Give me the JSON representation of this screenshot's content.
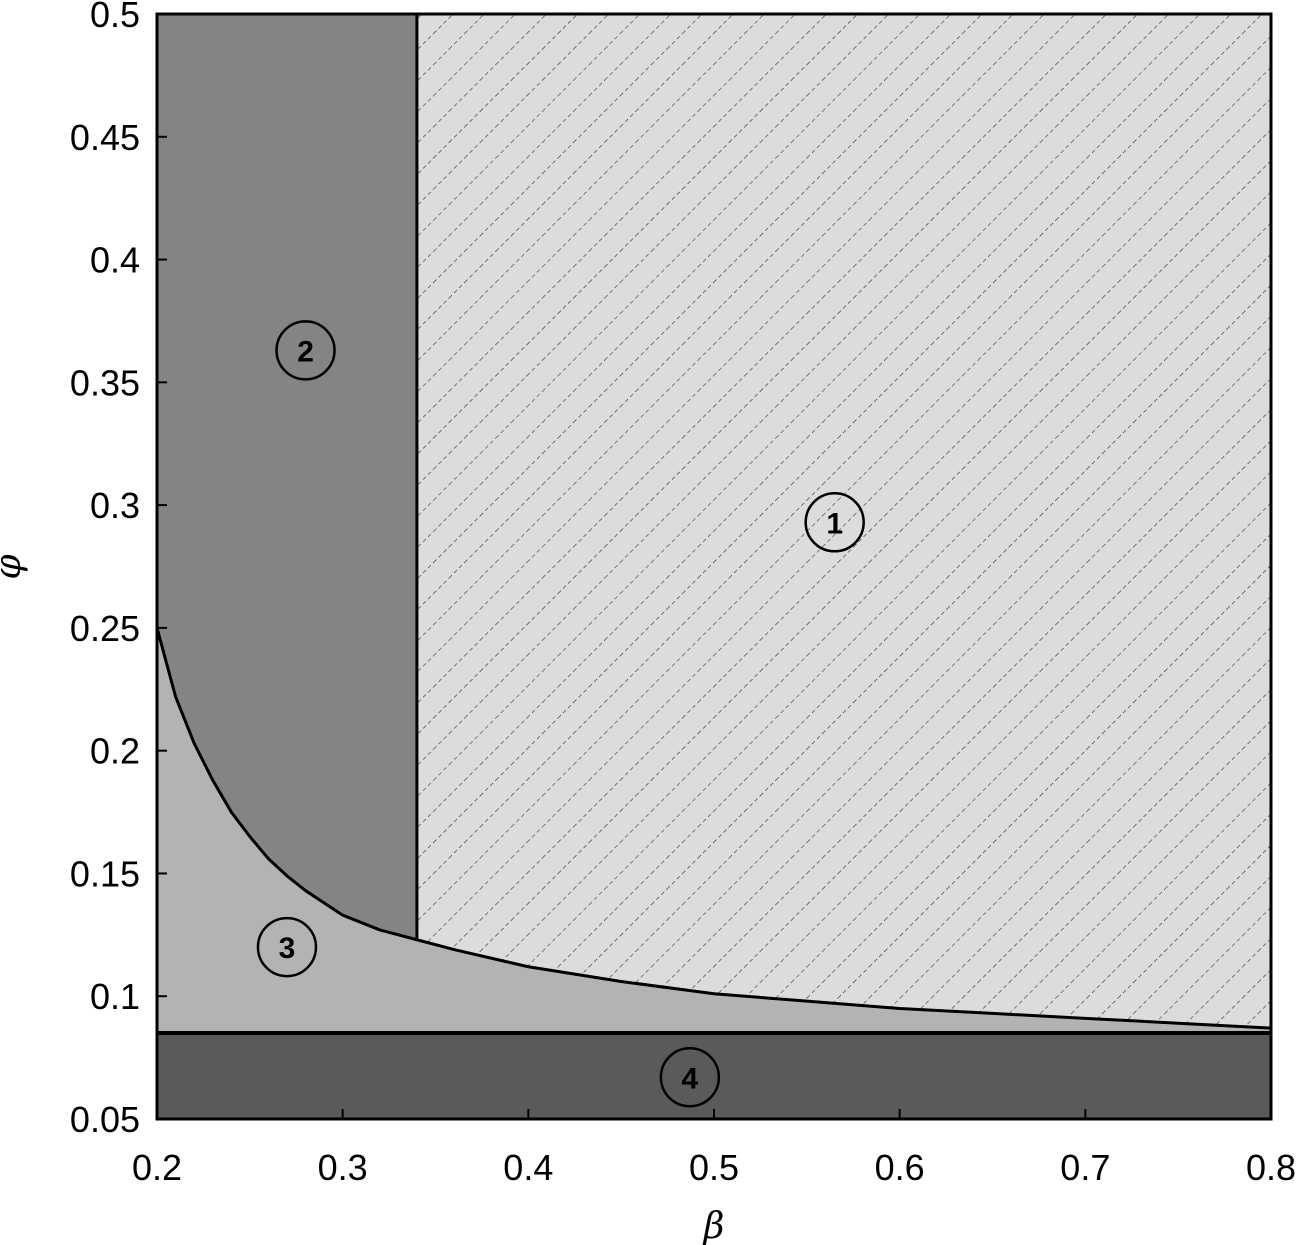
{
  "chart_data": {
    "type": "area",
    "title": "",
    "xlabel": "β",
    "ylabel": "φ",
    "xlim": [
      0.2,
      0.8
    ],
    "ylim": [
      0.05,
      0.5
    ],
    "xticks": [
      "0.2",
      "0.3",
      "0.4",
      "0.5",
      "0.6",
      "0.7",
      "0.8"
    ],
    "yticks": [
      "0.05",
      "0.1",
      "0.15",
      "0.2",
      "0.25",
      "0.3",
      "0.35",
      "0.4",
      "0.45",
      "0.5"
    ],
    "grid": false,
    "legend": "none",
    "boundaries": {
      "vertical_line_beta": 0.34,
      "horizontal_line_phi": 0.085,
      "curve": {
        "beta": [
          0.2,
          0.21,
          0.22,
          0.23,
          0.24,
          0.25,
          0.26,
          0.27,
          0.28,
          0.3,
          0.32,
          0.34,
          0.36,
          0.4,
          0.45,
          0.5,
          0.55,
          0.6,
          0.65,
          0.7,
          0.75,
          0.8
        ],
        "phi": [
          0.25,
          0.222,
          0.203,
          0.188,
          0.175,
          0.165,
          0.156,
          0.149,
          0.143,
          0.133,
          0.127,
          0.123,
          0.119,
          0.112,
          0.106,
          0.101,
          0.098,
          0.095,
          0.093,
          0.091,
          0.089,
          0.087
        ]
      }
    },
    "regions": [
      {
        "label": "1",
        "color": "#dcdcdc",
        "pattern": "diagonal-hatch",
        "label_beta": 0.565,
        "label_phi": 0.293
      },
      {
        "label": "2",
        "color": "#848484",
        "pattern": "solid",
        "label_beta": 0.28,
        "label_phi": 0.363
      },
      {
        "label": "3",
        "color": "#b3b3b3",
        "pattern": "solid",
        "label_beta": 0.27,
        "label_phi": 0.12
      },
      {
        "label": "4",
        "color": "#5a5a5a",
        "pattern": "solid",
        "label_beta": 0.487,
        "label_phi": 0.067
      }
    ]
  }
}
